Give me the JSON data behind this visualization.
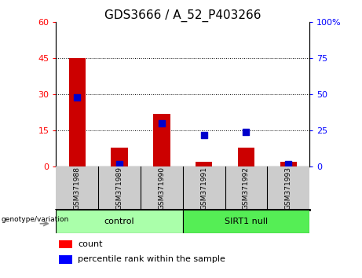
{
  "title": "GDS3666 / A_52_P403266",
  "categories": [
    "GSM371988",
    "GSM371989",
    "GSM371990",
    "GSM371991",
    "GSM371992",
    "GSM371993"
  ],
  "count_values": [
    45,
    8,
    22,
    2,
    8,
    2
  ],
  "percentile_values": [
    48,
    2,
    30,
    22,
    24,
    2
  ],
  "left_ylim": [
    0,
    60
  ],
  "right_ylim": [
    0,
    100
  ],
  "left_yticks": [
    0,
    15,
    30,
    45,
    60
  ],
  "right_yticks": [
    0,
    25,
    50,
    75,
    100
  ],
  "left_yticklabels": [
    "0",
    "15",
    "30",
    "45",
    "60"
  ],
  "right_yticklabels": [
    "0",
    "25",
    "50",
    "75",
    "100%"
  ],
  "bar_color": "#cc0000",
  "dot_color": "#0000cc",
  "groups": [
    {
      "label": "control",
      "indices": [
        0,
        1,
        2
      ],
      "color": "#aaffaa"
    },
    {
      "label": "SIRT1 null",
      "indices": [
        3,
        4,
        5
      ],
      "color": "#55ee55"
    }
  ],
  "genotype_label": "genotype/variation",
  "legend_count_label": "count",
  "legend_pct_label": "percentile rank within the sample",
  "title_fontsize": 11,
  "tick_fontsize": 8,
  "label_fontsize": 7
}
